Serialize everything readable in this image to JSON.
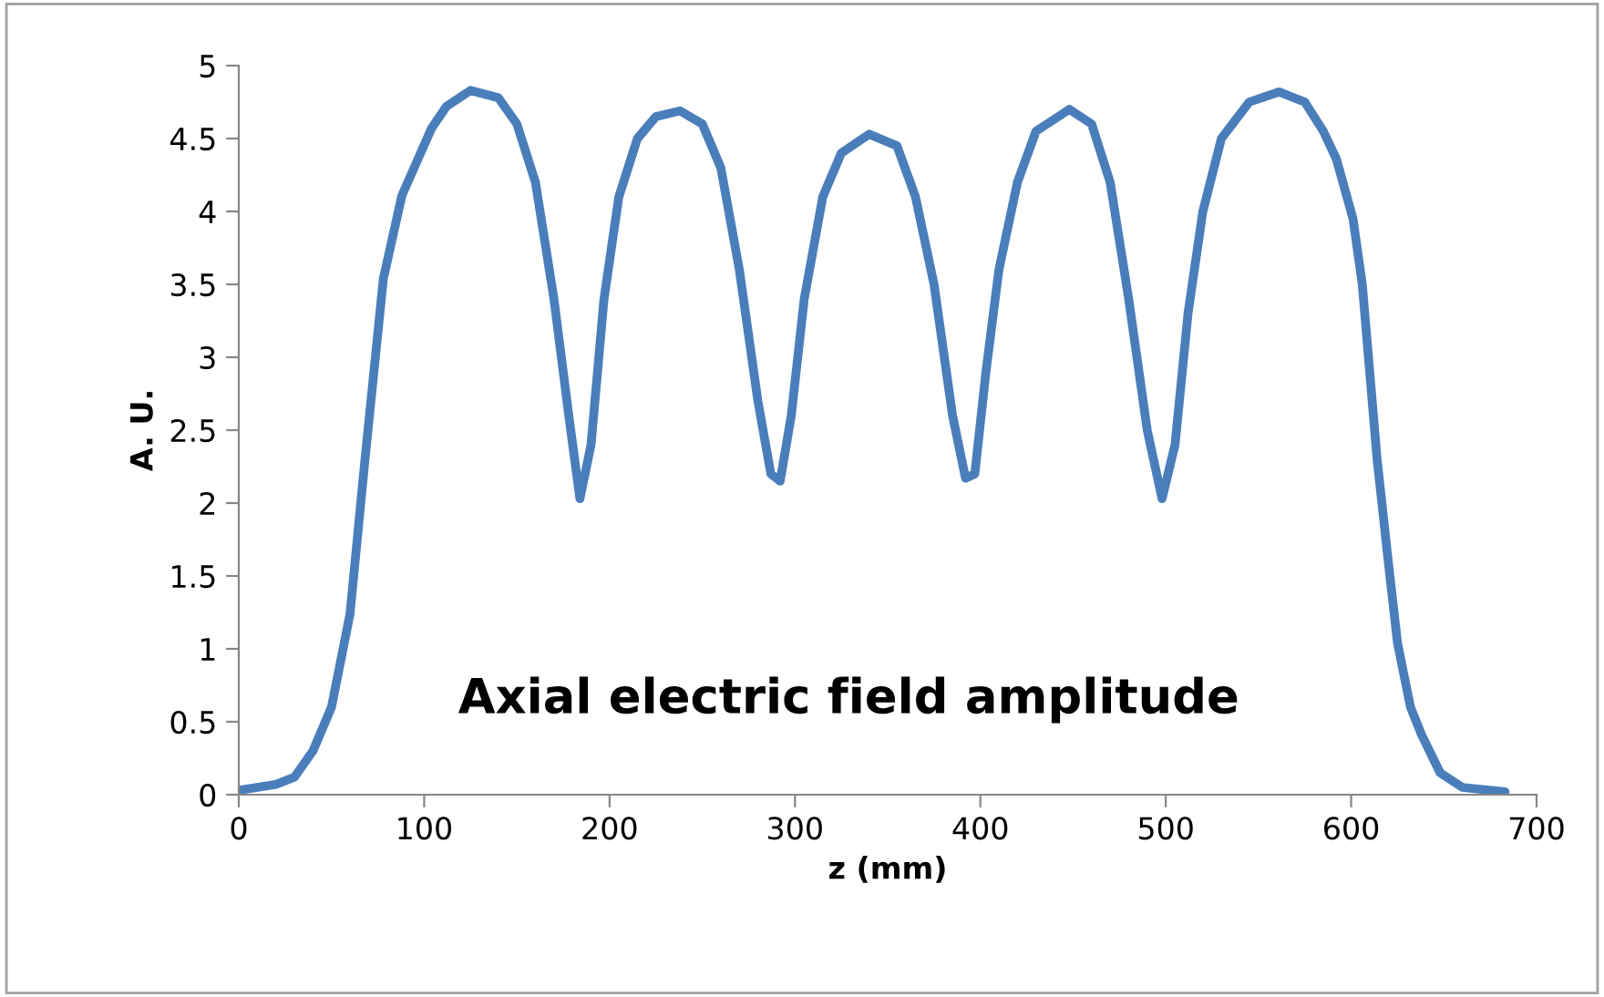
{
  "chart_data": {
    "type": "line",
    "xlabel": "z (mm)",
    "ylabel": "A. U.",
    "annotations": [
      "Axial electric field amplitude"
    ],
    "x": [
      0,
      20,
      30,
      40,
      50,
      60,
      68,
      78,
      88,
      104,
      112,
      125,
      140,
      150,
      160,
      170,
      178,
      184,
      190,
      197,
      205,
      215,
      225,
      238,
      250,
      260,
      270,
      280,
      287,
      292,
      298,
      305,
      315,
      325,
      340,
      355,
      365,
      375,
      385,
      392,
      397,
      403,
      410,
      420,
      430,
      448,
      460,
      470,
      480,
      490,
      498,
      505,
      512,
      520,
      530,
      545,
      561,
      575,
      585,
      592,
      601,
      606,
      614,
      620,
      625,
      632,
      638,
      648,
      660,
      683
    ],
    "series": [
      {
        "color": "#4a7ebb",
        "values": [
          0.03,
          0.07,
          0.12,
          0.3,
          0.6,
          1.24,
          2.29,
          3.54,
          4.11,
          4.57,
          4.72,
          4.83,
          4.78,
          4.6,
          4.2,
          3.4,
          2.6,
          2.03,
          2.4,
          3.4,
          4.1,
          4.5,
          4.65,
          4.69,
          4.6,
          4.3,
          3.6,
          2.7,
          2.2,
          2.15,
          2.6,
          3.4,
          4.1,
          4.4,
          4.53,
          4.45,
          4.1,
          3.5,
          2.6,
          2.17,
          2.2,
          2.9,
          3.6,
          4.2,
          4.55,
          4.7,
          4.6,
          4.2,
          3.4,
          2.5,
          2.03,
          2.4,
          3.3,
          4.0,
          4.5,
          4.75,
          4.82,
          4.75,
          4.55,
          4.36,
          3.95,
          3.5,
          2.3,
          1.6,
          1.04,
          0.6,
          0.41,
          0.15,
          0.05,
          0.02
        ]
      }
    ],
    "xlim": [
      0,
      700
    ],
    "xticks": [
      0,
      100,
      200,
      300,
      400,
      500,
      600,
      700
    ],
    "ylim": [
      0,
      5
    ],
    "yticks": [
      0,
      0.5,
      1,
      1.5,
      2,
      2.5,
      3,
      3.5,
      4,
      4.5,
      5
    ],
    "grid": false,
    "marker": "none",
    "line_style": "solid"
  }
}
